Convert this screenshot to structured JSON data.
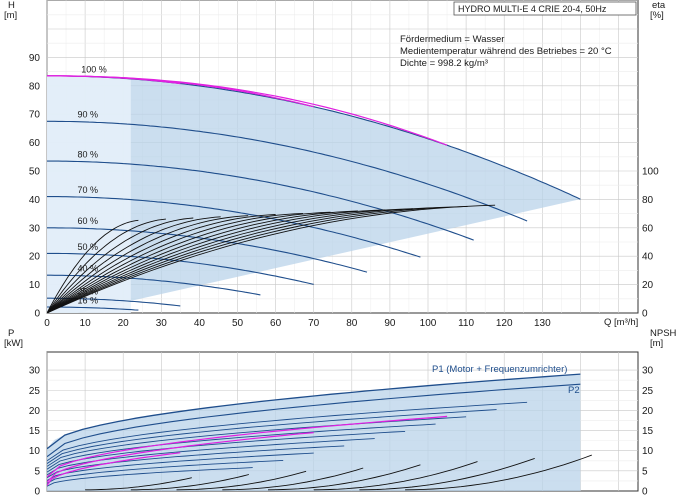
{
  "chart_data": [
    {
      "type": "line",
      "title": "HYDRO MULTI-E 4 CRIE 20-4, 50Hz",
      "ylabel_left": "H\n[m]",
      "ylabel_right": "eta\n[%]",
      "xlabel": "Q [m³/h]",
      "xlim": [
        0,
        140
      ],
      "ylim_left": [
        0,
        100
      ],
      "yticks_left": [
        "0",
        "10",
        "20",
        "30",
        "40",
        "50",
        "60",
        "70",
        "80",
        "90"
      ],
      "xticks": [
        "0",
        "10",
        "20",
        "30",
        "40",
        "50",
        "60",
        "70",
        "80",
        "90",
        "100",
        "110",
        "120",
        "130"
      ],
      "yticks_right": [
        "0",
        "20",
        "40",
        "60",
        "80",
        "100"
      ],
      "grid": true,
      "info": [
        "Fördermedium = Wasser",
        "Medientemperatur während des Betriebes = 20 °C",
        "Dichte = 998.2 kg/m³"
      ],
      "speed_labels": [
        "100 %",
        "90 %",
        "80 %",
        "70 %",
        "60 %",
        "50 %",
        "40 %",
        "25 %",
        "16 %"
      ],
      "qh_series": [
        {
          "speed": 100,
          "h0": 83.5,
          "qmax": 140
        },
        {
          "speed": 90,
          "h0": 67.5,
          "qmax": 126
        },
        {
          "speed": 80,
          "h0": 53.5,
          "qmax": 112
        },
        {
          "speed": 70,
          "h0": 41,
          "qmax": 98
        },
        {
          "speed": 60,
          "h0": 30,
          "qmax": 84
        },
        {
          "speed": 50,
          "h0": 21,
          "qmax": 70
        },
        {
          "speed": 40,
          "h0": 13.3,
          "qmax": 56
        },
        {
          "speed": 25,
          "h0": 5.2,
          "qmax": 35
        },
        {
          "speed": 16,
          "h0": 2.1,
          "qmax": 24
        }
      ],
      "system_curves_q_at_100": [
        35,
        70,
        105
      ]
    },
    {
      "type": "line",
      "ylabel_left": "P\n[kW]",
      "ylabel_right": "NPSH\n[m]",
      "ylim": [
        0,
        30
      ],
      "yticks_left": [
        "0",
        "5",
        "10",
        "15",
        "20",
        "25",
        "30"
      ],
      "yticks_right": [
        "0",
        "5",
        "10",
        "15",
        "20",
        "25",
        "30"
      ],
      "grid": true,
      "legend": [
        "P1 (Motor + Frequenzumrichter)",
        "P2"
      ],
      "p1_max": 29,
      "p2_max": 26.5
    }
  ]
}
